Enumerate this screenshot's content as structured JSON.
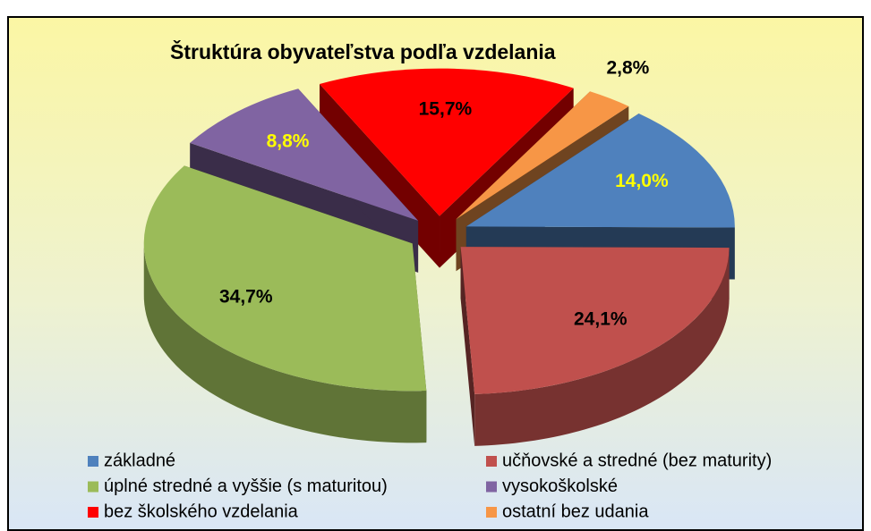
{
  "chart_data": {
    "type": "pie3d",
    "title": "Štruktúra  obyvateľstva podľa vzdelania",
    "categories": [
      "základné",
      "učňovské a stredné (bez maturity)",
      "úplné stredné  a vyššie (s maturitou)",
      "vysokoškolské",
      "bez školského vzdelania",
      "ostatní bez udania"
    ],
    "values": [
      14.0,
      24.1,
      34.7,
      8.8,
      15.7,
      2.8
    ],
    "value_labels": [
      "14,0%",
      "24,1%",
      "34,7%",
      "8,8%",
      "15,7%",
      "2,8%"
    ],
    "colors": [
      "#4f81bd",
      "#c0504d",
      "#9bbb59",
      "#8064a2",
      "#ff0000",
      "#f79646"
    ],
    "value_label_colors": [
      "#ffff00",
      "#000000",
      "#000000",
      "#ffff00",
      "#000000",
      "#000000"
    ],
    "legend": "bottom"
  }
}
